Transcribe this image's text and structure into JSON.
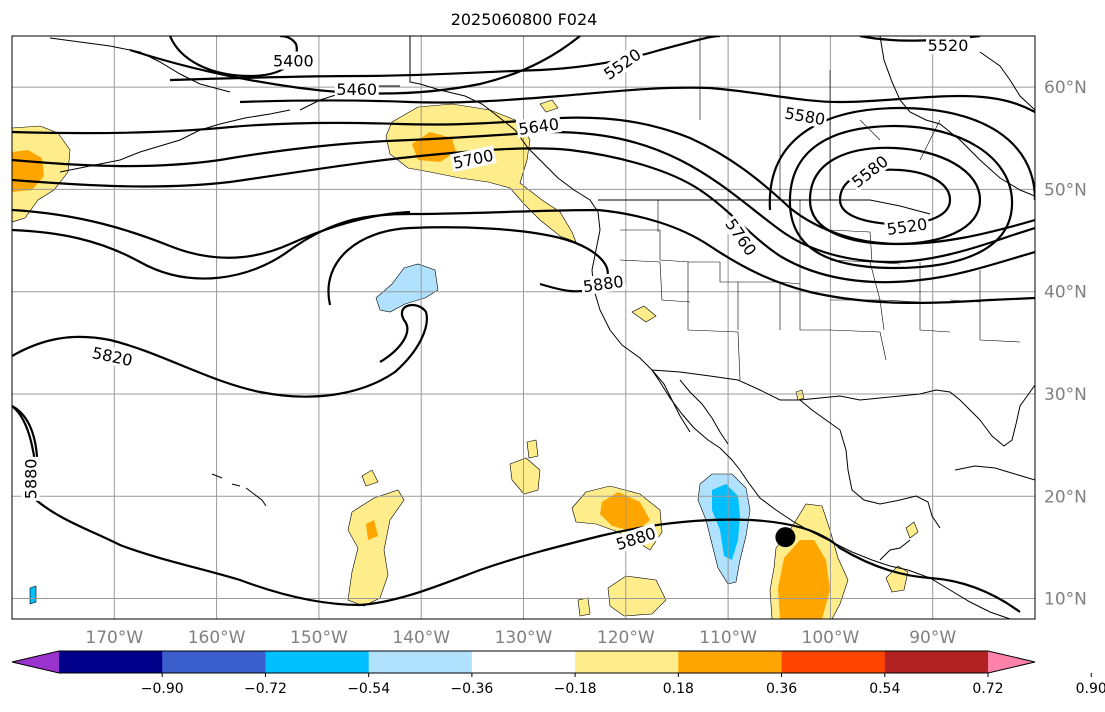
{
  "title": "2025060800 F024",
  "map": {
    "lon_range": [
      -180,
      -80
    ],
    "lat_range": [
      8,
      65
    ],
    "lat_ticks": [
      {
        "value": 10,
        "label": "10°N"
      },
      {
        "value": 20,
        "label": "20°N"
      },
      {
        "value": 30,
        "label": "30°N"
      },
      {
        "value": 40,
        "label": "40°N"
      },
      {
        "value": 50,
        "label": "50°N"
      },
      {
        "value": 60,
        "label": "60°N"
      }
    ],
    "lon_ticks": [
      {
        "value": -170,
        "label": "170°W"
      },
      {
        "value": -160,
        "label": "160°W"
      },
      {
        "value": -150,
        "label": "150°W"
      },
      {
        "value": -140,
        "label": "140°W"
      },
      {
        "value": -130,
        "label": "130°W"
      },
      {
        "value": -120,
        "label": "120°W"
      },
      {
        "value": -110,
        "label": "110°W"
      },
      {
        "value": -100,
        "label": "100°W"
      },
      {
        "value": -90,
        "label": "90°W"
      }
    ],
    "grid": true,
    "contour_labels": [
      {
        "text": "5400",
        "lon": -152.5,
        "lat": 62.5,
        "angle": 0
      },
      {
        "text": "5460",
        "lon": -146.3,
        "lat": 59.7,
        "angle": 0
      },
      {
        "text": "5520",
        "lon": -120.3,
        "lat": 62.2,
        "angle": -35
      },
      {
        "text": "5520",
        "lon": -88.5,
        "lat": 64.0,
        "angle": 0
      },
      {
        "text": "5580",
        "lon": -102.5,
        "lat": 57.1,
        "angle": 10
      },
      {
        "text": "5640",
        "lon": -128.5,
        "lat": 56.1,
        "angle": -8
      },
      {
        "text": "5700",
        "lon": -134.9,
        "lat": 52.9,
        "angle": -12
      },
      {
        "text": "5580",
        "lon": -96.1,
        "lat": 51.7,
        "angle": -38
      },
      {
        "text": "5520",
        "lon": -92.5,
        "lat": 46.3,
        "angle": -8
      },
      {
        "text": "5760",
        "lon": -108.8,
        "lat": 45.3,
        "angle": 55
      },
      {
        "text": "5880",
        "lon": -122.2,
        "lat": 40.7,
        "angle": -8
      },
      {
        "text": "5820",
        "lon": -170.2,
        "lat": 33.6,
        "angle": 12
      },
      {
        "text": "5880",
        "lon": -178.1,
        "lat": 21.7,
        "angle": -90
      },
      {
        "text": "5880",
        "lon": -119.0,
        "lat": 15.8,
        "angle": -18
      }
    ],
    "storm_marker": {
      "lon": -104.4,
      "lat": 16.0
    }
  },
  "colorbar": {
    "colors": [
      "#9a32cd",
      "#00008b",
      "#3a5fcd",
      "#00bfff",
      "#b0e2ff",
      "#ffffff",
      "#ffec8b",
      "#ffa500",
      "#ff4500",
      "#b22222",
      "#ff82ab"
    ],
    "ticks": [
      "−0.90",
      "−0.72",
      "−0.54",
      "−0.36",
      "−0.18",
      "0.18",
      "0.36",
      "0.54",
      "0.72",
      "0.90"
    ]
  },
  "colors": {
    "contour": "#000000",
    "grid": "#9a9a9a",
    "tick_label": "#808080"
  }
}
